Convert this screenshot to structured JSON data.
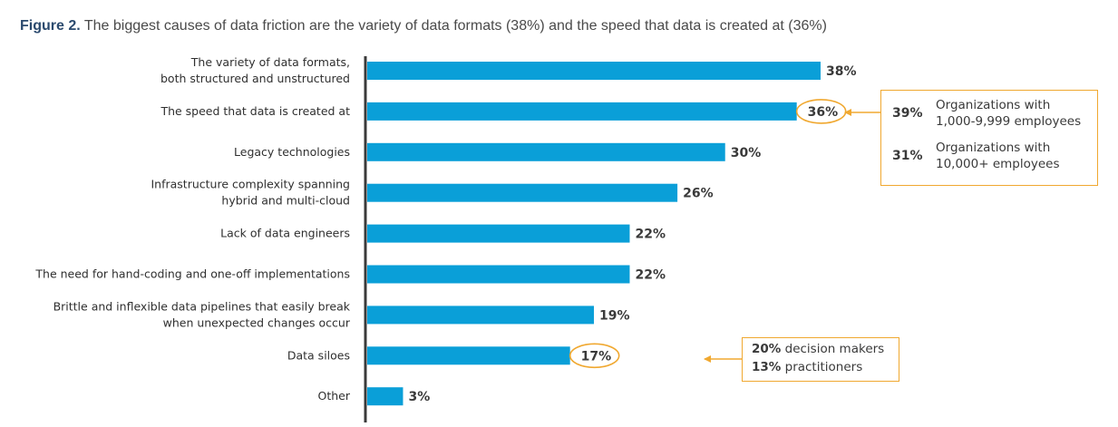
{
  "figure": {
    "label": "Figure 2.",
    "caption": " The biggest causes of data friction are the variety of data formats (38%) and the speed that data is created at (36%)"
  },
  "chart_data": {
    "type": "bar",
    "orientation": "horizontal",
    "categories": [
      [
        "The variety of data formats,",
        "both structured and unstructured"
      ],
      [
        "The speed that data is created at"
      ],
      [
        "Legacy technologies"
      ],
      [
        "Infrastructure complexity spanning",
        "hybrid and multi-cloud"
      ],
      [
        "Lack of data engineers"
      ],
      [
        "The need for hand-coding and one-off implementations"
      ],
      [
        "Brittle and inflexible data pipelines that easily break",
        "when unexpected changes occur"
      ],
      [
        "Data siloes"
      ],
      [
        "Other"
      ]
    ],
    "values": [
      38,
      36,
      30,
      26,
      22,
      22,
      19,
      17,
      3
    ],
    "value_labels": [
      "38%",
      "36%",
      "30%",
      "26%",
      "22%",
      "22%",
      "19%",
      "17%",
      "3%"
    ],
    "highlighted": [
      1,
      7
    ],
    "bar_color": "#0a9fd8",
    "highlight_color": "#f0a830",
    "xlim": [
      0,
      38
    ]
  },
  "callouts": {
    "speed": {
      "rows": [
        {
          "pct": "39%",
          "lines": [
            "Organizations with",
            "1,000-9,999 employees"
          ]
        },
        {
          "pct": "31%",
          "lines": [
            "Organizations with",
            "10,000+ employees"
          ]
        }
      ]
    },
    "siloes": {
      "rows": [
        {
          "bold": "20%",
          "text": " decision makers"
        },
        {
          "bold": "13%",
          "text": " practitioners"
        }
      ]
    }
  }
}
